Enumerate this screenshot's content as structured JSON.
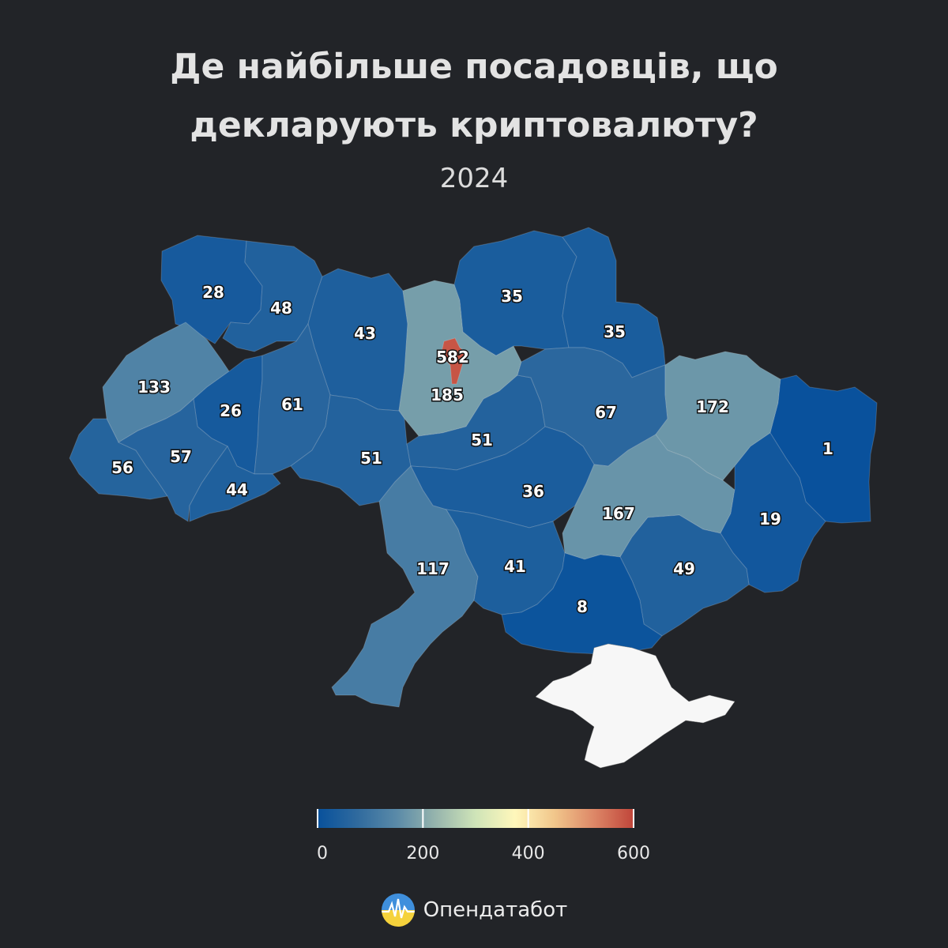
{
  "header": {
    "title_line1": "Де найбільше посадовців, що",
    "title_line2": "декларують криптовалюту?",
    "subtitle": "2024"
  },
  "map_data": {
    "value_range": [
      0,
      600
    ],
    "regions": [
      {
        "id": "volyn",
        "value": 28
      },
      {
        "id": "rivne",
        "value": 48
      },
      {
        "id": "zhytomyr",
        "value": 43
      },
      {
        "id": "kyiv-oblast",
        "value": 185
      },
      {
        "id": "kyiv-city",
        "value": 582
      },
      {
        "id": "chernihiv",
        "value": 35
      },
      {
        "id": "sumy",
        "value": 35
      },
      {
        "id": "lviv",
        "value": 133
      },
      {
        "id": "ternopil",
        "value": 26
      },
      {
        "id": "khmelnytskyi",
        "value": 61
      },
      {
        "id": "vinnytsia",
        "value": 51
      },
      {
        "id": "cherkasy",
        "value": 51
      },
      {
        "id": "poltava",
        "value": 67
      },
      {
        "id": "kharkiv",
        "value": 172
      },
      {
        "id": "luhansk",
        "value": 1
      },
      {
        "id": "zakarpattia",
        "value": 56
      },
      {
        "id": "ivano-frankivsk",
        "value": 57
      },
      {
        "id": "chernivtsi",
        "value": 44
      },
      {
        "id": "kirovohrad",
        "value": 36
      },
      {
        "id": "dnipropetrovsk",
        "value": 167
      },
      {
        "id": "donetsk",
        "value": 19
      },
      {
        "id": "odesa",
        "value": 117
      },
      {
        "id": "mykolaiv",
        "value": 41
      },
      {
        "id": "zaporizhzhia",
        "value": 49
      },
      {
        "id": "kherson",
        "value": 8
      }
    ]
  },
  "colors": {
    "background": "#222428",
    "crimea": "#f7f7f7",
    "scale_stops": [
      "#08519c",
      "#2f6a9e",
      "#5a8aa8",
      "#97b5ad",
      "#cfe4b8",
      "#fff7bb",
      "#f1c68b",
      "#dd8767",
      "#c0453a"
    ]
  },
  "legend": {
    "ticks": [
      {
        "value": 0,
        "label": "0"
      },
      {
        "value": 200,
        "label": "200"
      },
      {
        "value": 400,
        "label": "400"
      },
      {
        "value": 600,
        "label": "600"
      }
    ]
  },
  "brand": {
    "name": "Опендатабот",
    "logo_icon": "opendatabot-logo-icon"
  }
}
